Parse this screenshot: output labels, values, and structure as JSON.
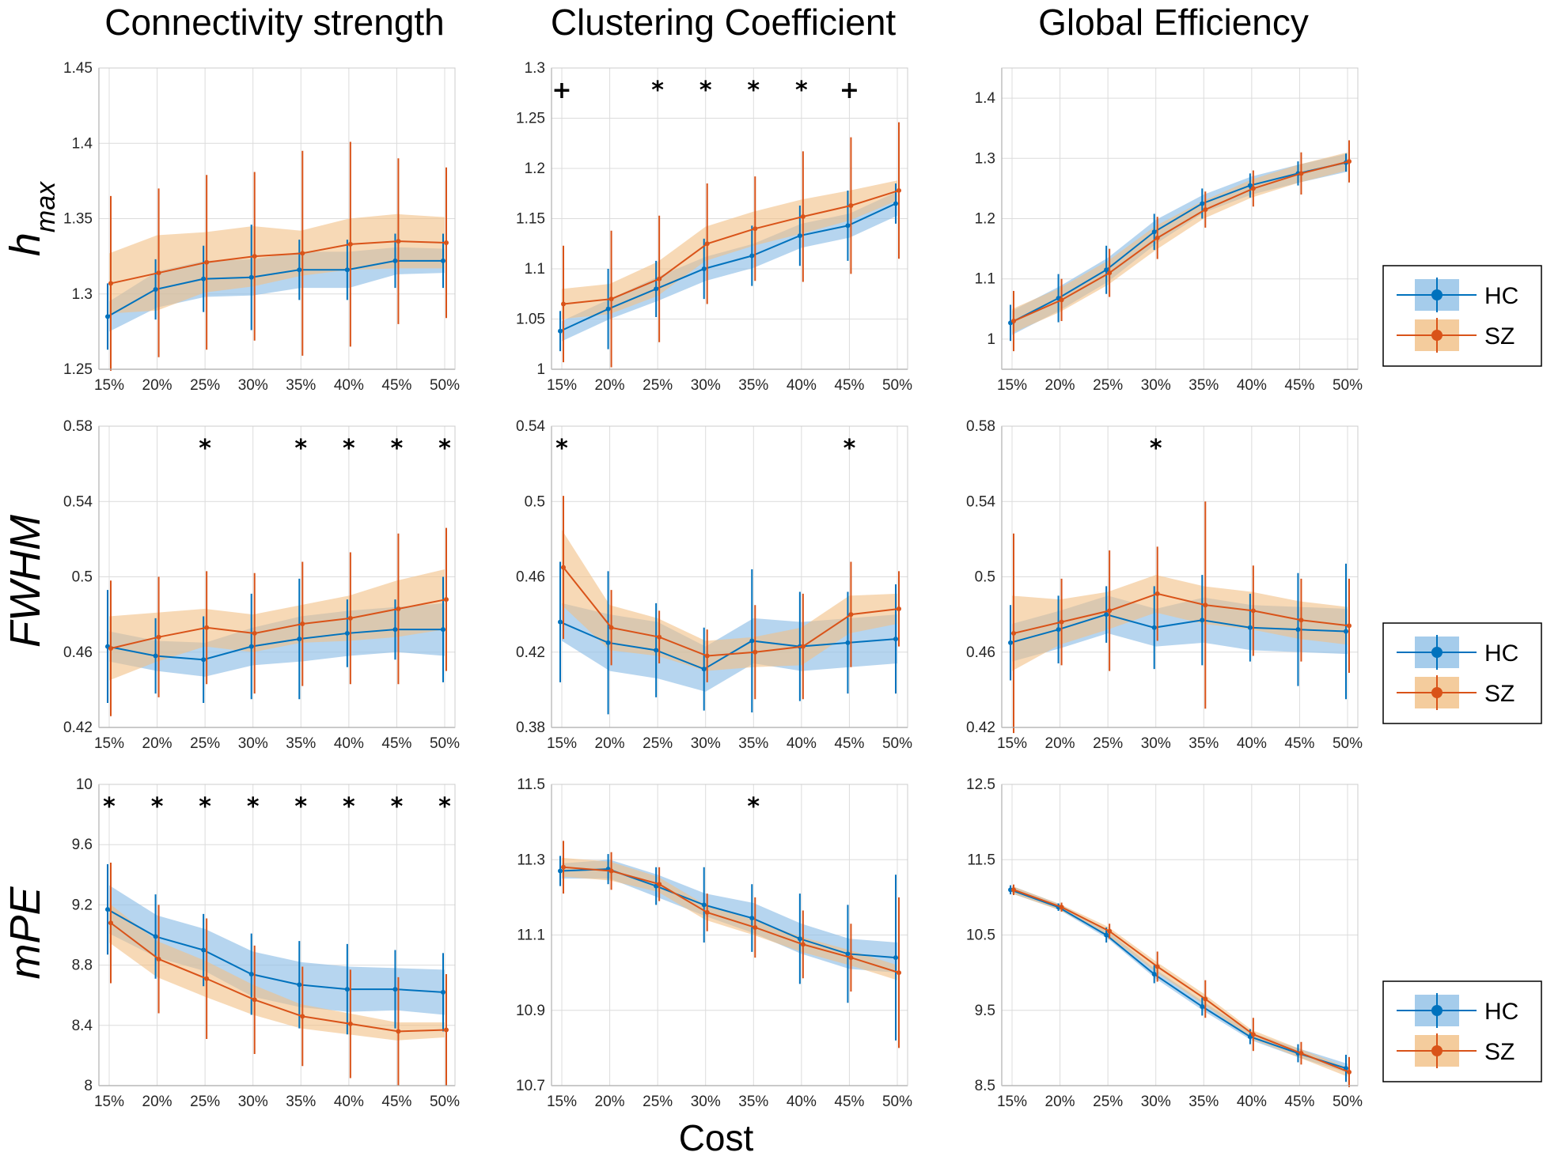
{
  "figure": {
    "column_titles": [
      "Connectivity strength",
      "Clustering Coefficient",
      "Global Efficiency"
    ],
    "row_labels": [
      {
        "main": "h",
        "sub": "max"
      },
      {
        "main": "FWHM",
        "sub": ""
      },
      {
        "main": "mPE",
        "sub": ""
      }
    ],
    "xlabel": "Cost",
    "legend": {
      "entries": [
        "HC",
        "SZ"
      ]
    },
    "colors": {
      "HC": "#0072BD",
      "SZ": "#D95319",
      "HC_band": "#8fbfe6",
      "SZ_band": "#f1bf85",
      "grid": "#dcdcdc",
      "axis": "#262626"
    }
  },
  "chart_data": [
    {
      "type": "line",
      "row": 0,
      "col": 0,
      "categories": [
        "15%",
        "20%",
        "25%",
        "30%",
        "35%",
        "40%",
        "45%",
        "50%"
      ],
      "ylim": [
        1.25,
        1.45
      ],
      "yticks": [
        "1.25",
        "1.3",
        "1.35",
        "1.4",
        "1.45"
      ],
      "series": [
        {
          "name": "HC",
          "values": [
            1.285,
            1.303,
            1.31,
            1.311,
            1.316,
            1.316,
            1.322,
            1.322
          ],
          "err": [
            0.022,
            0.02,
            0.022,
            0.035,
            0.02,
            0.02,
            0.018,
            0.018
          ],
          "band": [
            0.01,
            0.012,
            0.012,
            0.012,
            0.012,
            0.012,
            0.009,
            0.008
          ]
        },
        {
          "name": "SZ",
          "values": [
            1.307,
            1.314,
            1.321,
            1.325,
            1.327,
            1.333,
            1.335,
            1.334
          ],
          "err": [
            0.058,
            0.056,
            0.058,
            0.056,
            0.068,
            0.068,
            0.055,
            0.05
          ],
          "band": [
            0.02,
            0.025,
            0.02,
            0.02,
            0.015,
            0.017,
            0.018,
            0.017
          ]
        }
      ],
      "markers": []
    },
    {
      "type": "line",
      "row": 0,
      "col": 1,
      "categories": [
        "15%",
        "20%",
        "25%",
        "30%",
        "35%",
        "40%",
        "45%",
        "50%"
      ],
      "ylim": [
        1.0,
        1.3
      ],
      "yticks": [
        "1",
        "1.05",
        "1.1",
        "1.15",
        "1.2",
        "1.25",
        "1.3"
      ],
      "series": [
        {
          "name": "HC",
          "values": [
            1.038,
            1.06,
            1.08,
            1.1,
            1.113,
            1.133,
            1.143,
            1.165
          ],
          "err": [
            0.02,
            0.04,
            0.028,
            0.03,
            0.03,
            0.03,
            0.035,
            0.02
          ],
          "band": [
            0.01,
            0.01,
            0.012,
            0.012,
            0.012,
            0.012,
            0.012,
            0.012
          ]
        },
        {
          "name": "SZ",
          "values": [
            1.065,
            1.07,
            1.09,
            1.125,
            1.14,
            1.152,
            1.163,
            1.178
          ],
          "err": [
            0.058,
            0.068,
            0.063,
            0.06,
            0.052,
            0.065,
            0.068,
            0.068
          ],
          "band": [
            0.015,
            0.015,
            0.017,
            0.017,
            0.017,
            0.017,
            0.015,
            0.01
          ]
        }
      ],
      "markers": [
        "+",
        "",
        "*",
        "*",
        "*",
        "*",
        "+",
        ""
      ]
    },
    {
      "type": "line",
      "row": 0,
      "col": 2,
      "categories": [
        "15%",
        "20%",
        "25%",
        "30%",
        "35%",
        "40%",
        "45%",
        "50%"
      ],
      "ylim": [
        0.95,
        1.45
      ],
      "yticks": [
        "1",
        "1.1",
        "1.2",
        "1.3",
        "1.4"
      ],
      "series": [
        {
          "name": "HC",
          "values": [
            1.027,
            1.068,
            1.115,
            1.178,
            1.225,
            1.255,
            1.275,
            1.293
          ],
          "err": [
            0.03,
            0.04,
            0.04,
            0.03,
            0.025,
            0.02,
            0.02,
            0.015
          ],
          "band": [
            0.02,
            0.02,
            0.02,
            0.02,
            0.015,
            0.015,
            0.015,
            0.015
          ]
        },
        {
          "name": "SZ",
          "values": [
            1.03,
            1.065,
            1.11,
            1.168,
            1.215,
            1.25,
            1.275,
            1.295
          ],
          "err": [
            0.05,
            0.035,
            0.04,
            0.035,
            0.03,
            0.03,
            0.035,
            0.035
          ],
          "band": [
            0.02,
            0.02,
            0.02,
            0.02,
            0.015,
            0.015,
            0.015,
            0.015
          ]
        }
      ],
      "markers": []
    },
    {
      "type": "line",
      "row": 1,
      "col": 0,
      "categories": [
        "15%",
        "20%",
        "25%",
        "30%",
        "35%",
        "40%",
        "45%",
        "50%"
      ],
      "ylim": [
        0.42,
        0.58
      ],
      "yticks": [
        "0.42",
        "0.46",
        "0.5",
        "0.54",
        "0.58"
      ],
      "series": [
        {
          "name": "HC",
          "values": [
            0.463,
            0.458,
            0.456,
            0.463,
            0.467,
            0.47,
            0.472,
            0.472
          ],
          "err": [
            0.03,
            0.02,
            0.023,
            0.028,
            0.032,
            0.018,
            0.016,
            0.028
          ],
          "band": [
            0.008,
            0.008,
            0.009,
            0.01,
            0.012,
            0.012,
            0.012,
            0.014
          ]
        },
        {
          "name": "SZ",
          "values": [
            0.462,
            0.468,
            0.473,
            0.47,
            0.475,
            0.478,
            0.483,
            0.488
          ],
          "err": [
            0.036,
            0.032,
            0.03,
            0.032,
            0.033,
            0.035,
            0.04,
            0.038
          ],
          "band": [
            0.017,
            0.013,
            0.01,
            0.01,
            0.01,
            0.012,
            0.015,
            0.016
          ]
        }
      ],
      "markers": [
        "",
        "",
        "*",
        "",
        "*",
        "*",
        "*",
        "*"
      ]
    },
    {
      "type": "line",
      "row": 1,
      "col": 1,
      "categories": [
        "15%",
        "20%",
        "25%",
        "30%",
        "35%",
        "40%",
        "45%",
        "50%"
      ],
      "ylim": [
        0.38,
        0.54
      ],
      "yticks": [
        "0.38",
        "0.42",
        "0.46",
        "0.5",
        "0.54"
      ],
      "series": [
        {
          "name": "HC",
          "values": [
            0.436,
            0.425,
            0.421,
            0.411,
            0.426,
            0.423,
            0.425,
            0.427
          ],
          "err": [
            0.032,
            0.038,
            0.025,
            0.022,
            0.038,
            0.029,
            0.027,
            0.029
          ],
          "band": [
            0.01,
            0.015,
            0.015,
            0.012,
            0.012,
            0.013,
            0.013,
            0.013
          ]
        },
        {
          "name": "SZ",
          "values": [
            0.465,
            0.433,
            0.428,
            0.418,
            0.42,
            0.423,
            0.44,
            0.443
          ],
          "err": [
            0.038,
            0.02,
            0.014,
            0.014,
            0.025,
            0.028,
            0.028,
            0.02
          ],
          "band": [
            0.02,
            0.012,
            0.01,
            0.008,
            0.008,
            0.01,
            0.01,
            0.008
          ]
        }
      ],
      "markers": [
        "*",
        "",
        "",
        "",
        "",
        "",
        "*",
        ""
      ]
    },
    {
      "type": "line",
      "row": 1,
      "col": 2,
      "categories": [
        "15%",
        "20%",
        "25%",
        "30%",
        "35%",
        "40%",
        "45%",
        "50%"
      ],
      "ylim": [
        0.42,
        0.58
      ],
      "yticks": [
        "0.42",
        "0.46",
        "0.5",
        "0.54",
        "0.58"
      ],
      "series": [
        {
          "name": "HC",
          "values": [
            0.465,
            0.472,
            0.48,
            0.473,
            0.477,
            0.473,
            0.472,
            0.471
          ],
          "err": [
            0.02,
            0.018,
            0.015,
            0.022,
            0.024,
            0.018,
            0.03,
            0.036
          ],
          "band": [
            0.01,
            0.01,
            0.01,
            0.01,
            0.012,
            0.012,
            0.012,
            0.012
          ]
        },
        {
          "name": "SZ",
          "values": [
            0.47,
            0.476,
            0.482,
            0.491,
            0.485,
            0.482,
            0.477,
            0.474
          ],
          "err": [
            0.053,
            0.023,
            0.032,
            0.025,
            0.055,
            0.024,
            0.022,
            0.025
          ],
          "band": [
            0.02,
            0.012,
            0.01,
            0.01,
            0.01,
            0.01,
            0.01,
            0.01
          ]
        }
      ],
      "markers": [
        "",
        "",
        "",
        "*",
        "",
        "",
        "",
        ""
      ]
    },
    {
      "type": "line",
      "row": 2,
      "col": 0,
      "categories": [
        "15%",
        "20%",
        "25%",
        "30%",
        "35%",
        "40%",
        "45%",
        "50%"
      ],
      "ylim": [
        8.0,
        10.0
      ],
      "yticks": [
        "8",
        "8.4",
        "8.8",
        "9.2",
        "9.6",
        "10"
      ],
      "series": [
        {
          "name": "HC",
          "values": [
            9.17,
            8.99,
            8.9,
            8.74,
            8.67,
            8.64,
            8.64,
            8.62
          ],
          "err": [
            0.3,
            0.28,
            0.24,
            0.27,
            0.29,
            0.3,
            0.26,
            0.26
          ],
          "band": [
            0.16,
            0.14,
            0.14,
            0.15,
            0.15,
            0.15,
            0.14,
            0.15
          ]
        },
        {
          "name": "SZ",
          "values": [
            9.08,
            8.84,
            8.71,
            8.57,
            8.46,
            8.41,
            8.36,
            8.37
          ],
          "err": [
            0.4,
            0.36,
            0.4,
            0.36,
            0.33,
            0.36,
            0.36,
            0.37
          ],
          "band": [
            0.13,
            0.12,
            0.12,
            0.1,
            0.08,
            0.07,
            0.06,
            0.05
          ]
        }
      ],
      "markers": [
        "*",
        "*",
        "*",
        "*",
        "*",
        "*",
        "*",
        "*"
      ]
    },
    {
      "type": "line",
      "row": 2,
      "col": 1,
      "categories": [
        "15%",
        "20%",
        "25%",
        "30%",
        "35%",
        "40%",
        "45%",
        "50%"
      ],
      "ylim": [
        10.7,
        11.5
      ],
      "yticks": [
        "10.7",
        "10.9",
        "11.1",
        "11.3",
        "11.5"
      ],
      "series": [
        {
          "name": "HC",
          "values": [
            11.27,
            11.275,
            11.23,
            11.18,
            11.145,
            11.09,
            11.05,
            11.04
          ],
          "err": [
            0.04,
            0.04,
            0.05,
            0.1,
            0.09,
            0.12,
            0.13,
            0.22
          ],
          "band": [
            0.02,
            0.025,
            0.03,
            0.03,
            0.04,
            0.04,
            0.04,
            0.04
          ]
        },
        {
          "name": "SZ",
          "values": [
            11.28,
            11.27,
            11.235,
            11.16,
            11.12,
            11.075,
            11.04,
            11.0
          ],
          "err": [
            0.07,
            0.05,
            0.045,
            0.05,
            0.08,
            0.09,
            0.09,
            0.2
          ],
          "band": [
            0.025,
            0.025,
            0.02,
            0.02,
            0.02,
            0.02,
            0.02,
            0.02
          ]
        }
      ],
      "markers": [
        "",
        "",
        "",
        "",
        "*",
        "",
        "",
        ""
      ]
    },
    {
      "type": "line",
      "row": 2,
      "col": 2,
      "categories": [
        "15%",
        "20%",
        "25%",
        "30%",
        "35%",
        "40%",
        "45%",
        "50%"
      ],
      "ylim": [
        8.5,
        12.5
      ],
      "yticks": [
        "8.5",
        "9.5",
        "10.5",
        "11.5",
        "12.5"
      ],
      "series": [
        {
          "name": "HC",
          "values": [
            11.1,
            10.87,
            10.5,
            9.98,
            9.55,
            9.15,
            8.93,
            8.73
          ],
          "err": [
            0.06,
            0.05,
            0.1,
            0.12,
            0.12,
            0.1,
            0.12,
            0.18
          ],
          "band": [
            0.05,
            0.04,
            0.05,
            0.06,
            0.06,
            0.05,
            0.06,
            0.06
          ]
        },
        {
          "name": "SZ",
          "values": [
            11.1,
            10.87,
            10.55,
            10.08,
            9.65,
            9.18,
            8.93,
            8.68
          ],
          "err": [
            0.07,
            0.06,
            0.1,
            0.2,
            0.25,
            0.22,
            0.15,
            0.2
          ],
          "band": [
            0.05,
            0.04,
            0.06,
            0.07,
            0.07,
            0.06,
            0.06,
            0.06
          ]
        }
      ],
      "markers": []
    }
  ]
}
